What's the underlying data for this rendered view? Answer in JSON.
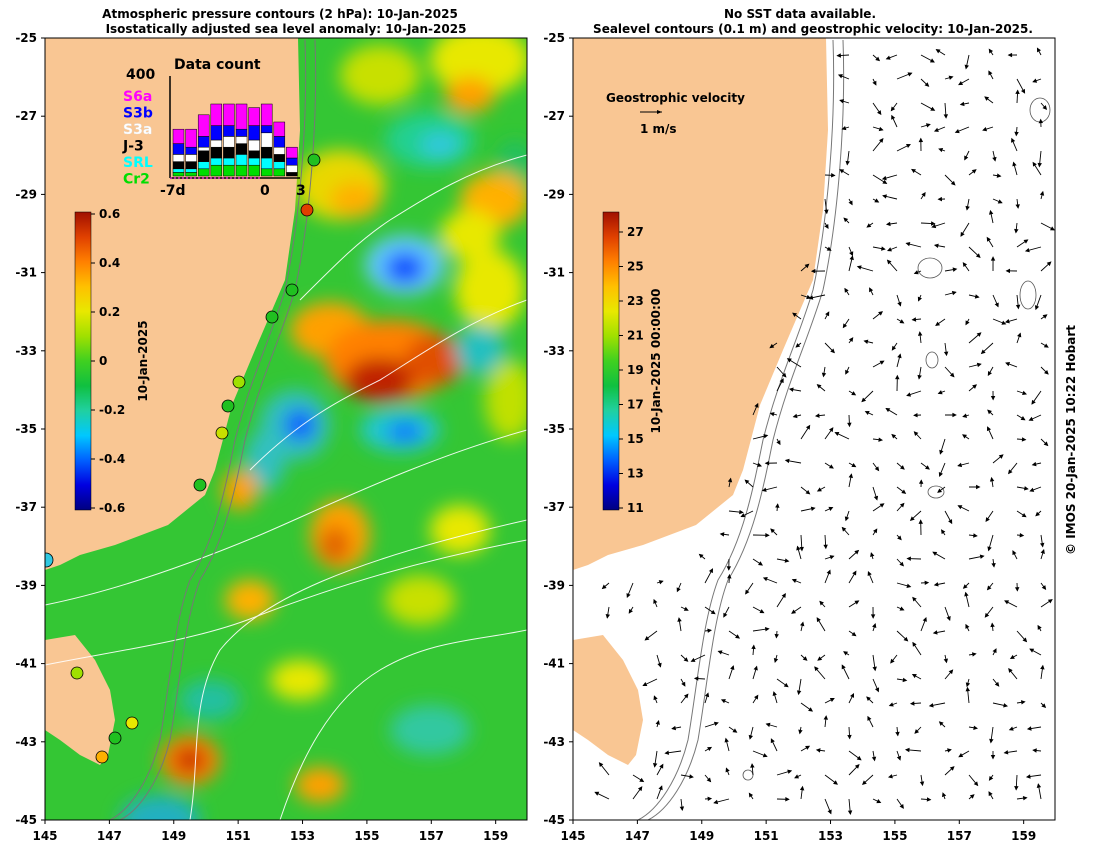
{
  "left_panel": {
    "title_line1": "Atmospheric pressure contours (2 hPa): 10-Jan-2025",
    "title_line2": "Isostatically adjusted sea level anomaly: 10-Jan-2025",
    "colorbar_label": "10-Jan-2025",
    "colorbar_ticks": [
      "0.6",
      "0.4",
      "0.2",
      "0",
      "-0.2",
      "-0.4",
      "-0.6"
    ],
    "colorbar_colors": [
      "#000080",
      "#0000e0",
      "#0060ff",
      "#00c8ff",
      "#20d0a0",
      "#10c040",
      "#40d020",
      "#a0e000",
      "#e8e800",
      "#ffc000",
      "#ff8000",
      "#e04000",
      "#a01000"
    ]
  },
  "right_panel": {
    "title_line1": "No SST data available.",
    "title_line2": "Sealevel contours (0.1 m) and geostrophic velocity: 10-Jan-2025.",
    "velocity_legend_title": "Geostrophic velocity",
    "velocity_legend_scale": "1 m/s",
    "colorbar_label": "10-Jan-2025 00:00:00",
    "colorbar_ticks": [
      "27",
      "25",
      "23",
      "21",
      "19",
      "17",
      "15",
      "13",
      "11"
    ],
    "colorbar_colors": [
      "#000080",
      "#0000e0",
      "#0060ff",
      "#00c8ff",
      "#20d0a0",
      "#10c040",
      "#40d020",
      "#a0e000",
      "#e8e800",
      "#ffc000",
      "#ff8000",
      "#e04000",
      "#a01000"
    ]
  },
  "axes": {
    "y_ticks": [
      "-25",
      "-27",
      "-29",
      "-31",
      "-33",
      "-35",
      "-37",
      "-39",
      "-41",
      "-43",
      "-45"
    ],
    "x_ticks": [
      "145",
      "147",
      "149",
      "151",
      "153",
      "155",
      "157",
      "159"
    ]
  },
  "data_count": {
    "title": "Data count",
    "max_label": "400",
    "satellites": [
      {
        "name": "S6a",
        "color": "#ff00ff"
      },
      {
        "name": "S3b",
        "color": "#0000ff"
      },
      {
        "name": "S3a",
        "color": "#ffffff"
      },
      {
        "name": "J-3",
        "color": "#000000"
      },
      {
        "name": "SRL",
        "color": "#00ffff"
      },
      {
        "name": "Cr2",
        "color": "#00dd00"
      }
    ],
    "x_labels": [
      "-7d",
      "0",
      "3"
    ]
  },
  "credit": "© IMOS 20-Jan-2025 10:22 Hobart",
  "colors": {
    "land": "#f9c693",
    "ocean_green": "#34c634"
  }
}
